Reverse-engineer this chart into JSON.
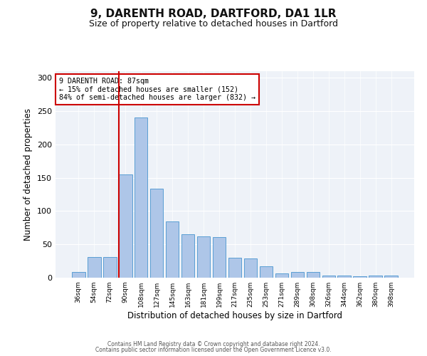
{
  "title1": "9, DARENTH ROAD, DARTFORD, DA1 1LR",
  "title2": "Size of property relative to detached houses in Dartford",
  "xlabel": "Distribution of detached houses by size in Dartford",
  "ylabel": "Number of detached properties",
  "categories": [
    "36sqm",
    "54sqm",
    "72sqm",
    "90sqm",
    "108sqm",
    "127sqm",
    "145sqm",
    "163sqm",
    "181sqm",
    "199sqm",
    "217sqm",
    "235sqm",
    "253sqm",
    "271sqm",
    "289sqm",
    "308sqm",
    "326sqm",
    "344sqm",
    "362sqm",
    "380sqm",
    "398sqm"
  ],
  "values": [
    9,
    31,
    31,
    155,
    241,
    134,
    84,
    65,
    62,
    61,
    30,
    29,
    17,
    6,
    9,
    9,
    3,
    3,
    2,
    3,
    3
  ],
  "bar_color": "#aec6e8",
  "bar_edge_color": "#5a9fd4",
  "vline_x": 2.575,
  "vline_color": "#cc0000",
  "annotation_text": "9 DARENTH ROAD: 87sqm\n← 15% of detached houses are smaller (152)\n84% of semi-detached houses are larger (832) →",
  "annotation_box_color": "#ffffff",
  "annotation_box_edge": "#cc0000",
  "ylim": [
    0,
    310
  ],
  "yticks": [
    0,
    50,
    100,
    150,
    200,
    250,
    300
  ],
  "footer1": "Contains HM Land Registry data © Crown copyright and database right 2024.",
  "footer2": "Contains public sector information licensed under the Open Government Licence v3.0.",
  "bg_color": "#eef2f8",
  "title1_fontsize": 11,
  "title2_fontsize": 9,
  "xlabel_fontsize": 8.5,
  "ylabel_fontsize": 8.5
}
